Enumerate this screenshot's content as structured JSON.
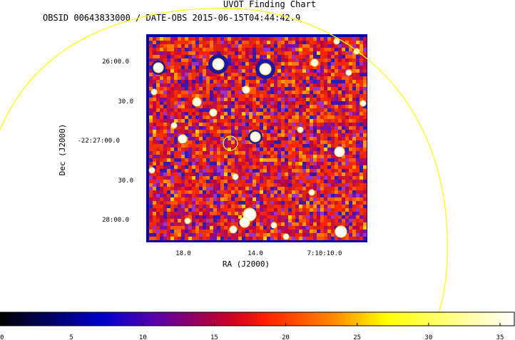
{
  "chart_data": {
    "type": "heatmap",
    "title": "UVOT Finding Chart",
    "subtitle": "OBSID 00643833000 / DATE-OBS 2015-06-15T04:44:42.9",
    "xlabel": "RA (J2000)",
    "ylabel": "Dec (J2000)",
    "x_ticks": [
      "18.0",
      "14.0",
      "7:10:10.0"
    ],
    "y_ticks": [
      "26:00.0",
      "30.0",
      "-22:27:00.0",
      "30.0",
      "28:00.0"
    ],
    "colorbar": {
      "ticks": [
        "0",
        "5",
        "10",
        "15",
        "20",
        "25",
        "30",
        "35"
      ],
      "range": [
        0,
        36
      ],
      "colormap": [
        "#000000",
        "#0000ff",
        "#ff0000",
        "#ffff00",
        "#ffffff"
      ]
    },
    "markers": [
      {
        "type": "target circle",
        "color": "#ffff00"
      },
      {
        "type": "field-of-view arc",
        "color": "#ffff00"
      }
    ]
  }
}
